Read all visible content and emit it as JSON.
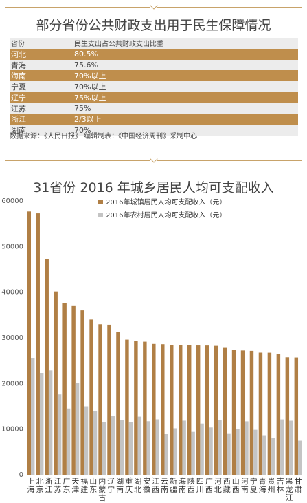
{
  "table": {
    "title": "部分省份公共财政支出用于民生保障情况",
    "headers": [
      "省份",
      "民生支出占公共财政支出比重"
    ],
    "rows": [
      [
        "河北",
        "80.5%"
      ],
      [
        "青海",
        "75.6%"
      ],
      [
        "海南",
        "70%以上"
      ],
      [
        "宁夏",
        "70%以上"
      ],
      [
        "辽宁",
        "75%以上"
      ],
      [
        "江苏",
        "75%"
      ],
      [
        "浙江",
        "2/3以上"
      ],
      [
        "湖南",
        "70%"
      ]
    ],
    "source": "数据来源：《人民日报》    编辑制表：《中国经济周刊》采制中心"
  },
  "colors": {
    "urban": "#b07f45",
    "rural": "#c4c4c4",
    "accent": "#c8a36a"
  },
  "chart_data": {
    "type": "bar",
    "title": "31省份 2016 年城乡居民人均可支配收入",
    "categories": [
      "上海",
      "北京",
      "浙江",
      "江苏",
      "广东",
      "天津",
      "福建",
      "山东",
      "内蒙古",
      "辽宁",
      "湖南",
      "重庆",
      "湖北",
      "安徽",
      "江西",
      "云南",
      "新疆",
      "海南",
      "陕西",
      "四川",
      "广西",
      "河北",
      "西藏",
      "山西",
      "河南",
      "宁夏",
      "青海",
      "贵州",
      "吉林",
      "黑龙江",
      "甘肃"
    ],
    "series": [
      {
        "name": "2016年城镇居民人均可支配收入（元）",
        "values": [
          57692,
          57275,
          47237,
          40152,
          37684,
          37110,
          36014,
          34012,
          32975,
          32876,
          31284,
          29610,
          29386,
          29156,
          28673,
          28611,
          28463,
          28453,
          28440,
          28335,
          28324,
          28249,
          27802,
          27352,
          27233,
          27153,
          26757,
          26743,
          26530,
          25736,
          25693
        ]
      },
      {
        "name": "2016年农村居民人均可支配收入（元）",
        "values": [
          25520,
          22310,
          22866,
          17606,
          14512,
          20076,
          14999,
          13954,
          11609,
          12881,
          11930,
          11549,
          12725,
          11720,
          12138,
          9020,
          10183,
          11843,
          9396,
          11203,
          10359,
          11919,
          9094,
          10082,
          11697,
          9852,
          8664,
          8090,
          12123,
          11832,
          7457
        ]
      }
    ],
    "ylim": [
      0,
      60000
    ],
    "yticks": [
      "0",
      "10000",
      "20000",
      "30000",
      "40000",
      "50000",
      "60000"
    ]
  }
}
